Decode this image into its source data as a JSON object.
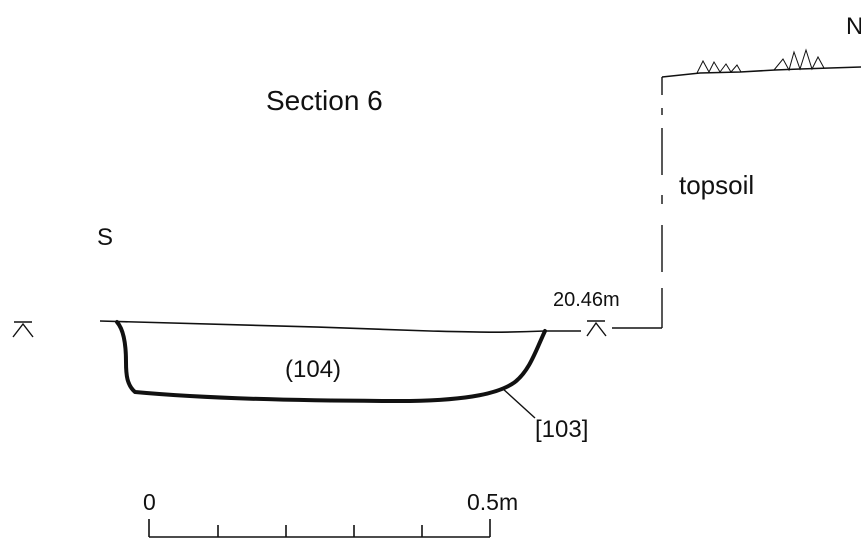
{
  "section": {
    "title": "Section 6",
    "direction_south": "S",
    "direction_north": "N",
    "layer_label": "topsoil",
    "datum_level": "20.46m",
    "fill_label": "(104)",
    "cut_label": "[103]"
  },
  "scale_bar": {
    "start_label": "0",
    "end_label": "0.5m"
  },
  "icons": {
    "datum": "datum-marker-icon",
    "grass": "grass-tuft-icon"
  }
}
